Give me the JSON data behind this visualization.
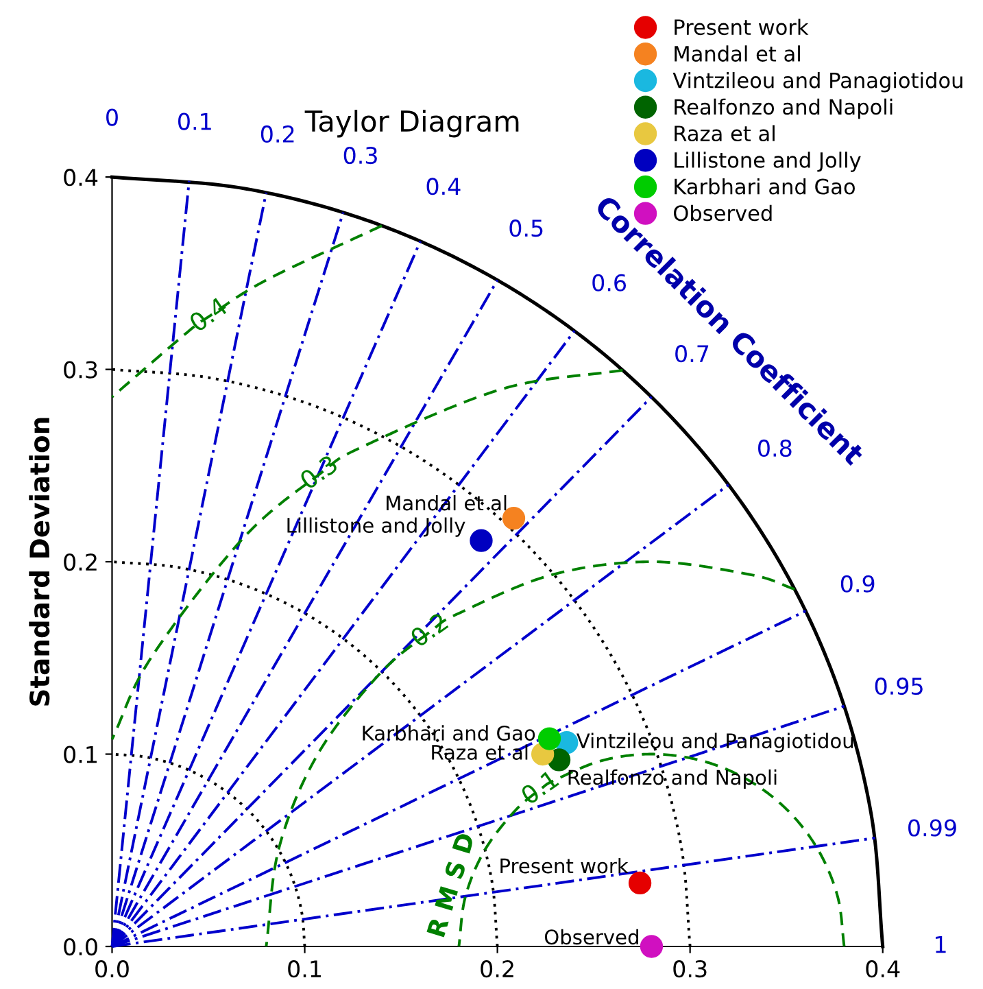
{
  "chart_data": {
    "type": "scatter",
    "title": "Taylor Diagram",
    "ylabel": "Standard Deviation",
    "xlim": [
      0,
      0.4
    ],
    "ylim": [
      0,
      0.4
    ],
    "xticks": [
      {
        "value": 0,
        "label": "0.0"
      },
      0.1,
      0.2,
      0.3,
      0.4
    ],
    "yticks": [
      {
        "value": 0,
        "label": "0.0"
      },
      0.1,
      0.2,
      0.3,
      0.4
    ],
    "legend": "top right",
    "marker": "circle",
    "series": [
      {
        "name": "Present work",
        "color": "#e50000",
        "x": [
          0.274
        ],
        "values": [
          0.033
        ]
      },
      {
        "name": "Mandal et al",
        "color": "#f58220",
        "x": [
          0.2085
        ],
        "values": [
          0.2226
        ]
      },
      {
        "name": "Vintzileou and Panagiotidou",
        "color": "#1ab8e0",
        "x": [
          0.236
        ],
        "values": [
          0.106
        ]
      },
      {
        "name": "Realfonzo and Napoli",
        "color": "#006400",
        "x": [
          0.232
        ],
        "values": [
          0.097
        ]
      },
      {
        "name": "Raza et al",
        "color": "#e8c840",
        "x": [
          0.2235
        ],
        "values": [
          0.1
        ]
      },
      {
        "name": "Lillistone and Jolly",
        "color": "#0000c0",
        "x": [
          0.1916
        ],
        "values": [
          0.211
        ]
      },
      {
        "name": "Karbhari and Gao",
        "color": "#00cc00",
        "x": [
          0.227
        ],
        "values": [
          0.108
        ]
      },
      {
        "name": "Observed",
        "color": "#d010c0",
        "x": [
          0.28
        ],
        "values": [
          0.0
        ]
      },
      {
        "type": "line",
        "marker": "none",
        "color": "#000000",
        "line_style": "dotted",
        "x": [
          0.1,
          0.0985,
          0.094,
          0.0866,
          0.0766,
          0.0643,
          0.05,
          0.0342,
          0.0174,
          0
        ],
        "values": [
          0,
          0.0174,
          0.0342,
          0.05,
          0.0643,
          0.0766,
          0.0866,
          0.094,
          0.0985,
          0.1
        ]
      },
      {
        "type": "line",
        "marker": "none",
        "color": "#000000",
        "line_style": "dotted",
        "x": [
          0.2,
          0.197,
          0.1879,
          0.1732,
          0.1532,
          0.1286,
          0.1,
          0.0684,
          0.0347,
          0
        ],
        "values": [
          0,
          0.0347,
          0.0684,
          0.1,
          0.1286,
          0.1532,
          0.1732,
          0.1879,
          0.197,
          0.2
        ]
      },
      {
        "type": "line",
        "marker": "none",
        "color": "#000000",
        "line_style": "dotted",
        "x": [
          0.3,
          0.2954,
          0.2819,
          0.2598,
          0.2298,
          0.1928,
          0.15,
          0.1026,
          0.0521,
          0
        ],
        "values": [
          0,
          0.0521,
          0.1026,
          0.15,
          0.1928,
          0.2298,
          0.2598,
          0.2819,
          0.2954,
          0.3
        ]
      },
      {
        "type": "line",
        "marker": "none",
        "color": "#000000",
        "line_style": "solid",
        "x": [
          0.4,
          0.3939,
          0.3759,
          0.3464,
          0.3064,
          0.2571,
          0.2,
          0.1368,
          0.0694,
          0
        ],
        "values": [
          0,
          0.0694,
          0.1368,
          0.2,
          0.2571,
          0.3064,
          0.3464,
          0.3759,
          0.3939,
          0.4
        ]
      },
      {
        "type": "line",
        "marker": "none",
        "color": "#0000cc",
        "line_style": "dashdot",
        "x": [
          0,
          0.04
        ],
        "values": [
          0,
          0.398
        ]
      },
      {
        "type": "line",
        "marker": "none",
        "color": "#0000cc",
        "line_style": "dashdot",
        "x": [
          0,
          0.08
        ],
        "values": [
          0,
          0.3919
        ]
      },
      {
        "type": "line",
        "marker": "none",
        "color": "#0000cc",
        "line_style": "dashdot",
        "x": [
          0,
          0.12
        ],
        "values": [
          0,
          0.3816
        ]
      },
      {
        "type": "line",
        "marker": "none",
        "color": "#0000cc",
        "line_style": "dashdot",
        "x": [
          0,
          0.16
        ],
        "values": [
          0,
          0.3666
        ]
      },
      {
        "type": "line",
        "marker": "none",
        "color": "#0000cc",
        "line_style": "dashdot",
        "x": [
          0,
          0.2
        ],
        "values": [
          0,
          0.3464
        ]
      },
      {
        "type": "line",
        "marker": "none",
        "color": "#0000cc",
        "line_style": "dashdot",
        "x": [
          0,
          0.24
        ],
        "values": [
          0,
          0.32
        ]
      },
      {
        "type": "line",
        "marker": "none",
        "color": "#0000cc",
        "line_style": "dashdot",
        "x": [
          0,
          0.28
        ],
        "values": [
          0,
          0.2857
        ]
      },
      {
        "type": "line",
        "marker": "none",
        "color": "#0000cc",
        "line_style": "dashdot",
        "x": [
          0,
          0.32
        ],
        "values": [
          0,
          0.24
        ]
      },
      {
        "type": "line",
        "marker": "none",
        "color": "#0000cc",
        "line_style": "dashdot",
        "x": [
          0,
          0.36
        ],
        "values": [
          0,
          0.1744
        ]
      },
      {
        "type": "line",
        "marker": "none",
        "color": "#0000cc",
        "line_style": "dashdot",
        "x": [
          0,
          0.38
        ],
        "values": [
          0,
          0.1249
        ]
      },
      {
        "type": "line",
        "marker": "none",
        "color": "#0000cc",
        "line_style": "dashdot",
        "x": [
          0,
          0.396
        ],
        "values": [
          0,
          0.0564
        ]
      },
      {
        "type": "line",
        "marker": "none",
        "color": "#008000",
        "line_style": "dashed",
        "x": [
          0.38,
          0.3766,
          0.3666,
          0.3507,
          0.33,
          0.3059,
          0.28,
          0.2541,
          0.23,
          0.2226,
          0.2093,
          0.1934,
          0.1834,
          0.18
        ],
        "values": [
          0,
          0.0259,
          0.05,
          0.0707,
          0.0866,
          0.0966,
          0.1,
          0.0966,
          0.0866,
          0.0819,
          0.0707,
          0.05,
          0.0259,
          0
        ]
      },
      {
        "type": "line",
        "marker": "none",
        "color": "#008000",
        "line_style": "dashed",
        "x": [
          0.3543,
          0.3318,
          0.28,
          0.2282,
          0.18,
          0.1653,
          0.1386,
          0.1068,
          0.0868,
          0.08
        ],
        "values": [
          0.1857,
          0.1932,
          0.2,
          0.1932,
          0.1732,
          0.1638,
          0.1414,
          0.1,
          0.0518,
          0
        ]
      },
      {
        "type": "line",
        "marker": "none",
        "color": "#008000",
        "line_style": "dashed",
        "x": [
          0.265,
          0.2024,
          0.13,
          0.1079,
          0.0679,
          0.0202,
          0
        ],
        "values": [
          0.2996,
          0.2898,
          0.2598,
          0.2457,
          0.2121,
          0.15,
          0.1077
        ]
      },
      {
        "type": "line",
        "marker": "none",
        "color": "#008000",
        "line_style": "dashed",
        "x": [
          0.14,
          0.08,
          0.0506,
          0.0393,
          0
        ],
        "values": [
          0.3747,
          0.3464,
          0.3277,
          0.3195,
          0.2857
        ]
      }
    ],
    "annotations": [
      "0",
      "0.1",
      "0.2",
      "0.3",
      "0.4",
      "0.5",
      "0.6",
      "0.7",
      "0.8",
      "0.9",
      "0.95",
      "0.99",
      "1",
      "Correlation Coefficient",
      "0.1",
      "0.2",
      "0.3",
      "0.4",
      "R M S D"
    ]
  }
}
